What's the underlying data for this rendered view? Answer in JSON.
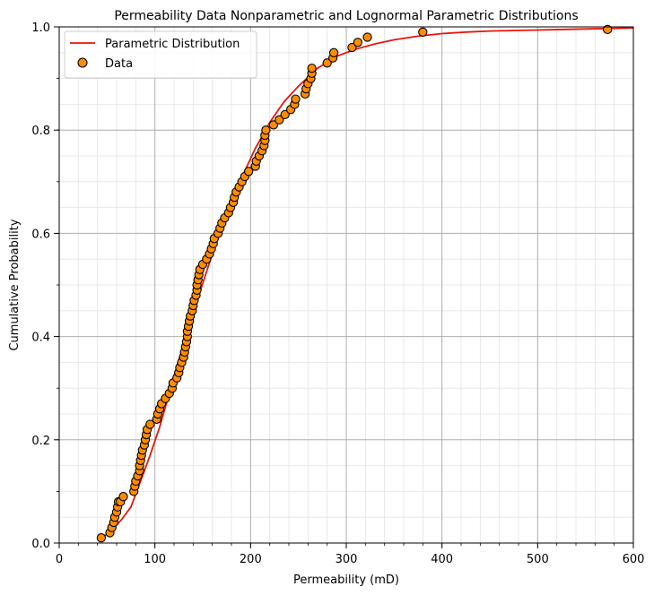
{
  "chart_data": {
    "type": "scatter",
    "title": "Permeability Data Nonparametric and Lognormal Parametric Distributions",
    "xlabel": "Permeability (mD)",
    "ylabel": "Cumulative Probability",
    "xlim": [
      0,
      600
    ],
    "ylim": [
      0,
      1.0
    ],
    "x_ticks": [
      0,
      100,
      200,
      300,
      400,
      500,
      600
    ],
    "y_ticks": [
      0.0,
      0.2,
      0.4,
      0.6,
      0.8,
      1.0
    ],
    "x_tick_labels": [
      "0",
      "100",
      "200",
      "300",
      "400",
      "500",
      "600"
    ],
    "y_tick_labels": [
      "0.0",
      "0.2",
      "0.4",
      "0.6",
      "0.8",
      "1.0"
    ],
    "grid": {
      "major": true,
      "minor": true
    },
    "legend": {
      "placement": "top-left",
      "entries": [
        "Parametric Distribution",
        "Data"
      ]
    },
    "colors": {
      "line": "#e8140c",
      "marker_fill": "#ff8c00",
      "marker_edge": "#000000",
      "major_grid": "#b0b0b0",
      "minor_grid": "#e3e3e3"
    },
    "series": [
      {
        "name": "Parametric Distribution",
        "kind": "line",
        "x": [
          45,
          55,
          65,
          75,
          85,
          95,
          105,
          115,
          125,
          135,
          145,
          160,
          175,
          190,
          205,
          220,
          235,
          250,
          270,
          290,
          310,
          330,
          350,
          375,
          400,
          425,
          450,
          500,
          550,
          600
        ],
        "y": [
          0.01,
          0.025,
          0.045,
          0.07,
          0.12,
          0.17,
          0.225,
          0.29,
          0.355,
          0.415,
          0.475,
          0.56,
          0.635,
          0.705,
          0.765,
          0.815,
          0.855,
          0.885,
          0.92,
          0.943,
          0.957,
          0.967,
          0.975,
          0.982,
          0.987,
          0.99,
          0.992,
          0.994,
          0.996,
          0.998
        ]
      },
      {
        "name": "Data",
        "kind": "scatter",
        "x": [
          44,
          53,
          55,
          57,
          58,
          60,
          61,
          62,
          64,
          67,
          78,
          79,
          80,
          82,
          84,
          84,
          85,
          86,
          87,
          89,
          90,
          91,
          92,
          95,
          102,
          103,
          105,
          107,
          111,
          115,
          118,
          119,
          123,
          125,
          126,
          128,
          130,
          131,
          132,
          133,
          134,
          134,
          135,
          136,
          137,
          139,
          140,
          141,
          143,
          144,
          144,
          145,
          146,
          147,
          150,
          154,
          157,
          159,
          161,
          162,
          166,
          168,
          170,
          173,
          177,
          179,
          182,
          183,
          185,
          188,
          191,
          194,
          198,
          205,
          206,
          209,
          212,
          214,
          215,
          215,
          216,
          224,
          230,
          236,
          242,
          246,
          247,
          257,
          258,
          260,
          263,
          264,
          264,
          280,
          286,
          287,
          306,
          312,
          322,
          380,
          573
        ],
        "y": [
          0.01,
          0.02,
          0.03,
          0.04,
          0.05,
          0.06,
          0.07,
          0.08,
          0.08,
          0.09,
          0.1,
          0.11,
          0.12,
          0.13,
          0.14,
          0.15,
          0.16,
          0.17,
          0.18,
          0.19,
          0.2,
          0.21,
          0.22,
          0.23,
          0.24,
          0.25,
          0.26,
          0.27,
          0.28,
          0.29,
          0.3,
          0.31,
          0.32,
          0.33,
          0.34,
          0.35,
          0.36,
          0.37,
          0.38,
          0.39,
          0.4,
          0.41,
          0.42,
          0.43,
          0.44,
          0.45,
          0.46,
          0.47,
          0.48,
          0.49,
          0.5,
          0.51,
          0.52,
          0.53,
          0.54,
          0.55,
          0.56,
          0.57,
          0.58,
          0.59,
          0.6,
          0.61,
          0.62,
          0.63,
          0.64,
          0.65,
          0.66,
          0.67,
          0.68,
          0.69,
          0.7,
          0.71,
          0.72,
          0.73,
          0.74,
          0.75,
          0.76,
          0.77,
          0.78,
          0.79,
          0.8,
          0.81,
          0.82,
          0.83,
          0.84,
          0.85,
          0.86,
          0.87,
          0.88,
          0.89,
          0.9,
          0.91,
          0.92,
          0.93,
          0.94,
          0.95,
          0.96,
          0.97,
          0.98,
          0.99,
          0.995
        ]
      }
    ]
  }
}
